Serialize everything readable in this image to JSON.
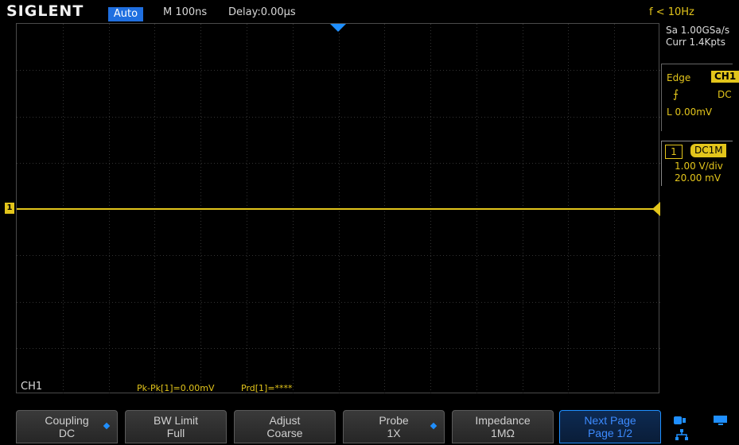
{
  "brand": "SIGLENT",
  "header": {
    "trigger_mode": "Auto",
    "timebase": "M 100ns",
    "delay": "Delay:0.00µs",
    "frequency": "f < 10Hz"
  },
  "acquisition": {
    "sample_rate": "Sa 1.00GSa/s",
    "memory": "Curr 1.4Kpts"
  },
  "trigger": {
    "type": "Edge",
    "source": "CH1",
    "coupling": "DC",
    "level": "L  0.00mV"
  },
  "channel": {
    "number": "1",
    "coupling_badge": "DC1M",
    "scale": "1.00 V/div",
    "offset": "20.00 mV",
    "label": "CH1",
    "marker": "1"
  },
  "measurements": [
    "Pk-Pk[1]=0.00mV",
    "Prd[1]=****"
  ],
  "softkeys": [
    {
      "line1": "Coupling",
      "line2": "DC",
      "has_arrow": true
    },
    {
      "line1": "BW Limit",
      "line2": "Full",
      "has_arrow": false
    },
    {
      "line1": "Adjust",
      "line2": "Coarse",
      "has_arrow": false
    },
    {
      "line1": "Probe",
      "line2": "1X",
      "has_arrow": true
    },
    {
      "line1": "Impedance",
      "line2": "1MΩ",
      "has_arrow": false
    },
    {
      "line1": "Next Page",
      "line2": "Page 1/2",
      "has_arrow": false,
      "active": true
    }
  ],
  "colors": {
    "trace": "#e3c51b",
    "accent": "#1f8fff",
    "grid": "#3a3a3a"
  }
}
